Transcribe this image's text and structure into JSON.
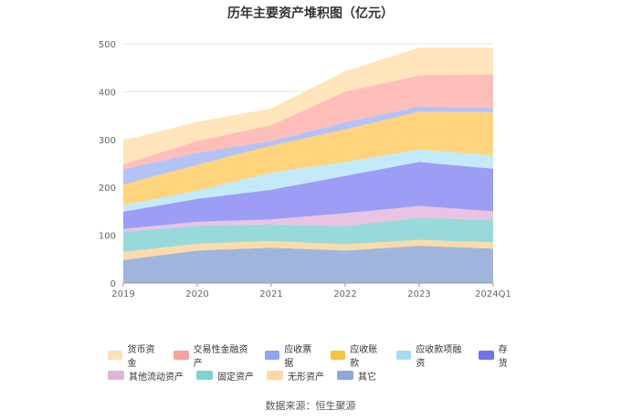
{
  "chart_data": {
    "type": "area",
    "stacked": true,
    "title": "历年主要资产堆积图（亿元）",
    "categories": [
      "2019",
      "2020",
      "2021",
      "2022",
      "2023",
      "2024Q1"
    ],
    "ylim": [
      0,
      500
    ],
    "yticks": [
      0,
      100,
      200,
      300,
      400,
      500
    ],
    "grid": true,
    "legend_position": "bottom",
    "series": [
      {
        "name": "其它",
        "color": "#8fa8d8",
        "values": [
          48,
          68,
          74,
          68,
          78,
          72
        ]
      },
      {
        "name": "无形资产",
        "color": "#fbd59a",
        "values": [
          17,
          14,
          14,
          13,
          12,
          13
        ]
      },
      {
        "name": "固定资产",
        "color": "#86d3d5",
        "values": [
          42,
          38,
          35,
          38,
          47,
          46
        ]
      },
      {
        "name": "其他流动资产",
        "color": "#e6b8de",
        "values": [
          6,
          8,
          10,
          27,
          24,
          19
        ]
      },
      {
        "name": "存货",
        "color": "#8c8cf3",
        "values": [
          36,
          48,
          62,
          78,
          92,
          89
        ]
      },
      {
        "name": "应收款项融资",
        "color": "#b9e6f8",
        "values": [
          14,
          17,
          36,
          29,
          26,
          28
        ]
      },
      {
        "name": "应收账款",
        "color": "#ffcc66",
        "values": [
          43,
          54,
          56,
          68,
          79,
          90
        ]
      },
      {
        "name": "应收票据",
        "color": "#a7b8f5",
        "values": [
          32,
          25,
          10,
          15,
          11,
          10
        ]
      },
      {
        "name": "交易性金融资产",
        "color": "#ffb3ad",
        "values": [
          10,
          25,
          33,
          64,
          65,
          69
        ]
      },
      {
        "name": "货币资金",
        "color": "#ffe0b0",
        "values": [
          50,
          40,
          35,
          43,
          58,
          56
        ]
      }
    ],
    "legend_order": [
      "货币资金",
      "交易性金融资产",
      "应收票据",
      "应收账款",
      "应收款项融资",
      "存货",
      "其他流动资产",
      "固定资产",
      "无形资产",
      "其它"
    ]
  },
  "legend_rows": [
    [
      {
        "label": "货币资金",
        "color": "#fde0b3"
      },
      {
        "label": "交易性金融资产",
        "color": "#f7a39a"
      },
      {
        "label": "应收票据",
        "color": "#8fa5f5"
      },
      {
        "label": "应收账款",
        "color": "#f9c23c"
      },
      {
        "label": "应收款项融资",
        "color": "#a5dcf5"
      },
      {
        "label": "存货",
        "color": "#7272ee"
      }
    ],
    [
      {
        "label": "其他流动资产",
        "color": "#e2b4dc"
      },
      {
        "label": "固定资产",
        "color": "#7fd3d3"
      },
      {
        "label": "无形资产",
        "color": "#fbd89f"
      },
      {
        "label": "其它",
        "color": "#8fa8d8"
      }
    ]
  ],
  "source": "数据来源：恒生聚源"
}
